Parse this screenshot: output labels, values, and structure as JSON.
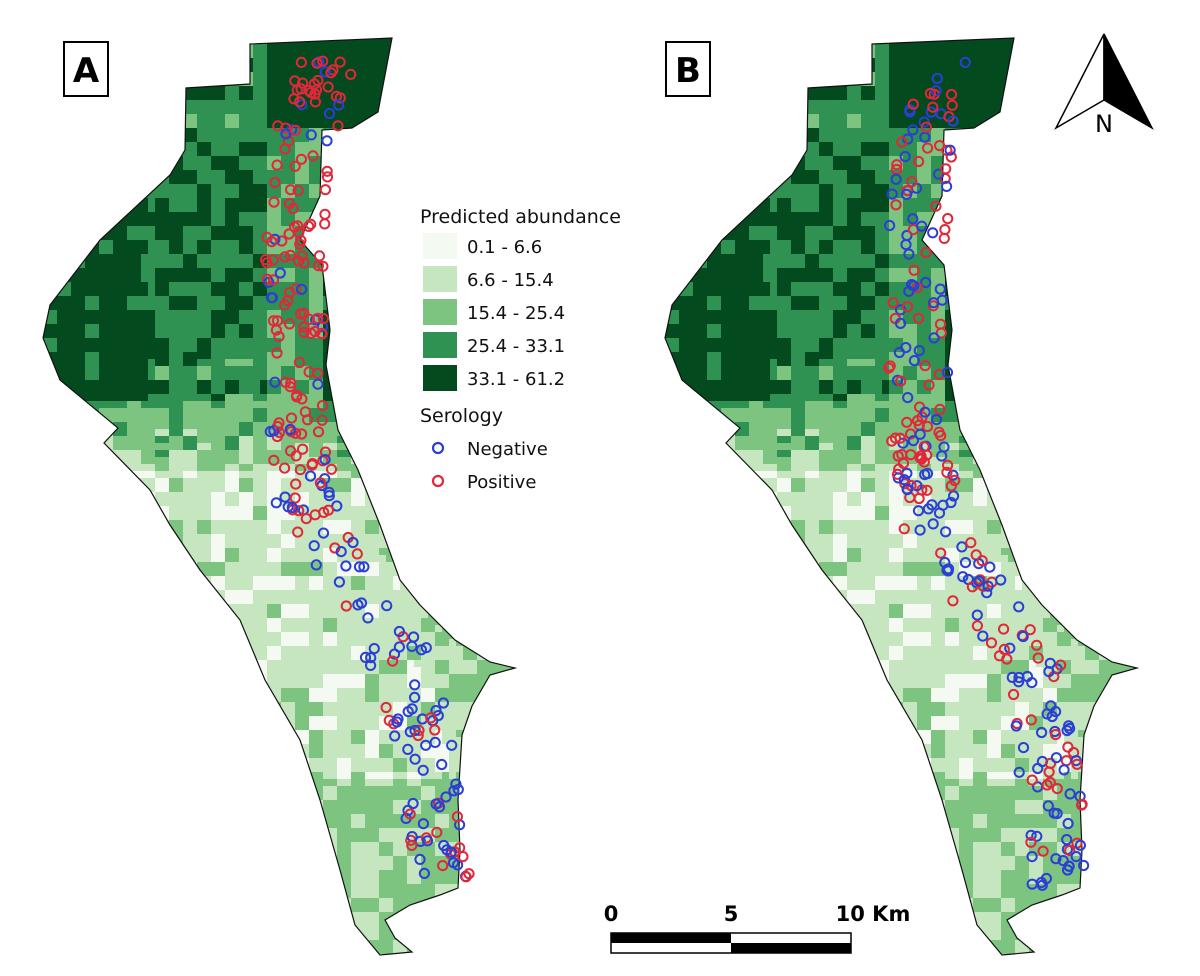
{
  "panels": [
    {
      "label": "A"
    },
    {
      "label": "B"
    }
  ],
  "legend": {
    "abundance_title": "Predicted abundance",
    "abundance_classes": [
      {
        "label": "0.1 - 6.6",
        "color": "#f4f9f1"
      },
      {
        "label": "6.6 - 15.4",
        "color": "#c6e6c0"
      },
      {
        "label": "15.4 - 25.4",
        "color": "#7cc47f"
      },
      {
        "label": "25.4 - 33.1",
        "color": "#2f9152"
      },
      {
        "label": "33.1 - 61.2",
        "color": "#034a1f"
      }
    ],
    "serology_title": "Serology",
    "serology_classes": [
      {
        "label": "Negative",
        "color": "#2b3fd6"
      },
      {
        "label": "Positive",
        "color": "#e0283a"
      }
    ]
  },
  "north_arrow": {
    "label": "N"
  },
  "scale_bar": {
    "ticks": [
      "0",
      "5",
      "10 Km"
    ]
  }
}
